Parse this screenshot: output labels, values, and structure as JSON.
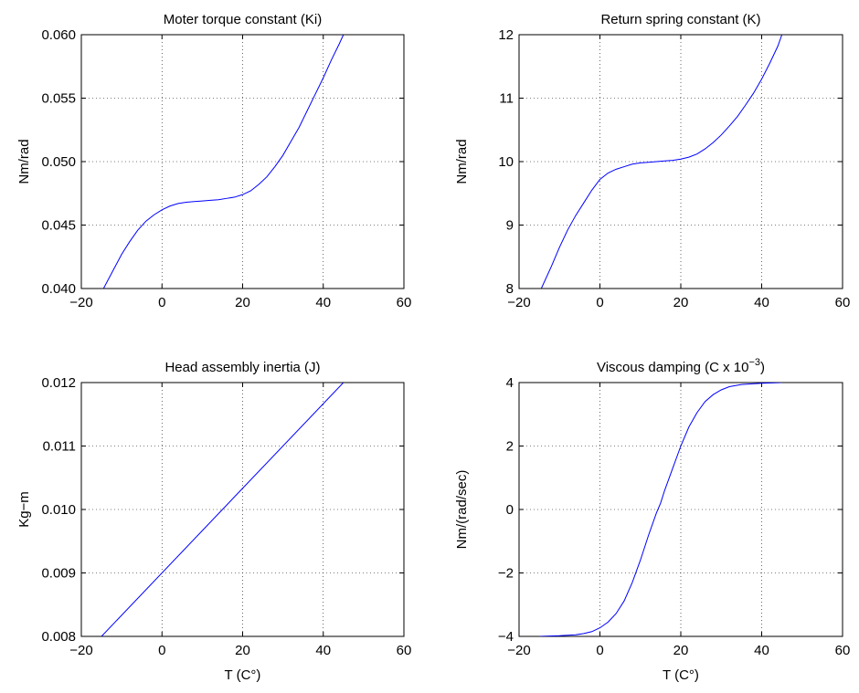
{
  "figure": {
    "line_color": "#0000ff",
    "background": "#ffffff"
  },
  "chart_data": [
    {
      "type": "line",
      "title": "Moter torque constant (Ki)",
      "xlabel": "",
      "ylabel": "Nm/rad",
      "xlim": [
        -20,
        60
      ],
      "ylim": [
        0.04,
        0.06
      ],
      "xticks": [
        -20,
        0,
        20,
        40,
        60
      ],
      "xtick_labels": [
        "−20",
        "0",
        "20",
        "40",
        "60"
      ],
      "yticks": [
        0.04,
        0.045,
        0.05,
        0.055,
        0.06
      ],
      "ytick_labels": [
        "0.040",
        "0.045",
        "0.050",
        "0.055",
        "0.060"
      ],
      "grid": true,
      "series": [
        {
          "x": [
            -14.5,
            -12,
            -10,
            -8,
            -6,
            -4,
            -2,
            0,
            2,
            4,
            6,
            8,
            10,
            12,
            14,
            16,
            18,
            20,
            22,
            24,
            26,
            28,
            30,
            32,
            34,
            36,
            38,
            40,
            42,
            44,
            45
          ],
          "y": [
            0.04,
            0.0415,
            0.0427,
            0.0437,
            0.0446,
            0.0453,
            0.0458,
            0.0462,
            0.0465,
            0.0467,
            0.0468,
            0.04685,
            0.0469,
            0.04695,
            0.047,
            0.0471,
            0.0472,
            0.0474,
            0.0477,
            0.0482,
            0.0488,
            0.0496,
            0.0505,
            0.0516,
            0.0527,
            0.054,
            0.0553,
            0.0566,
            0.058,
            0.0593,
            0.06
          ]
        }
      ]
    },
    {
      "type": "line",
      "title": "Return spring constant (K)",
      "xlabel": "",
      "ylabel": "Nm/rad",
      "xlim": [
        -20,
        60
      ],
      "ylim": [
        8,
        12
      ],
      "xticks": [
        -20,
        0,
        20,
        40,
        60
      ],
      "xtick_labels": [
        "−20",
        "0",
        "20",
        "40",
        "60"
      ],
      "yticks": [
        8,
        9,
        10,
        11,
        12
      ],
      "ytick_labels": [
        "8",
        "9",
        "10",
        "11",
        "12"
      ],
      "grid": true,
      "series": [
        {
          "x": [
            -14.5,
            -12,
            -10,
            -8,
            -6,
            -4,
            -2,
            0,
            2,
            4,
            6,
            8,
            10,
            12,
            14,
            16,
            18,
            20,
            22,
            24,
            26,
            28,
            30,
            32,
            34,
            36,
            38,
            40,
            42,
            44,
            45
          ],
          "y": [
            8.0,
            8.35,
            8.65,
            8.92,
            9.15,
            9.35,
            9.55,
            9.72,
            9.82,
            9.88,
            9.92,
            9.96,
            9.98,
            9.99,
            10.0,
            10.01,
            10.02,
            10.04,
            10.07,
            10.12,
            10.2,
            10.3,
            10.42,
            10.56,
            10.71,
            10.89,
            11.08,
            11.3,
            11.55,
            11.82,
            12.0
          ]
        }
      ]
    },
    {
      "type": "line",
      "title": "Head assembly inertia (J)",
      "xlabel": "T (C°)",
      "ylabel": "Kg−m",
      "xlim": [
        -20,
        60
      ],
      "ylim": [
        0.008,
        0.012
      ],
      "xticks": [
        -20,
        0,
        20,
        40,
        60
      ],
      "xtick_labels": [
        "−20",
        "0",
        "20",
        "40",
        "60"
      ],
      "yticks": [
        0.008,
        0.009,
        0.01,
        0.011,
        0.012
      ],
      "ytick_labels": [
        "0.008",
        "0.009",
        "0.010",
        "0.011",
        "0.012"
      ],
      "grid": true,
      "series": [
        {
          "x": [
            -15,
            45
          ],
          "y": [
            0.008,
            0.012
          ]
        }
      ]
    },
    {
      "type": "line",
      "title": "Viscous damping (C x 10",
      "title_sup": "−3",
      "title_end": ")",
      "xlabel": "T (C°)",
      "ylabel": "Nm/(rad/sec)",
      "xlim": [
        -20,
        60
      ],
      "ylim": [
        -4,
        4
      ],
      "xticks": [
        -20,
        0,
        20,
        40,
        60
      ],
      "xtick_labels": [
        "−20",
        "0",
        "20",
        "40",
        "60"
      ],
      "yticks": [
        -4,
        -2,
        0,
        2,
        4
      ],
      "ytick_labels": [
        "−4",
        "−2",
        "0",
        "2",
        "4"
      ],
      "grid": true,
      "series": [
        {
          "x": [
            -15,
            -10,
            -6,
            -4,
            -2,
            0,
            2,
            4,
            6,
            8,
            10,
            12,
            14,
            15,
            16,
            18,
            20,
            22,
            24,
            26,
            28,
            30,
            32,
            35,
            40,
            45
          ],
          "y": [
            -4.0,
            -3.98,
            -3.95,
            -3.91,
            -3.85,
            -3.73,
            -3.55,
            -3.28,
            -2.88,
            -2.3,
            -1.6,
            -0.82,
            -0.1,
            0.2,
            0.6,
            1.3,
            2.0,
            2.6,
            3.05,
            3.4,
            3.62,
            3.77,
            3.87,
            3.94,
            3.98,
            4.0
          ]
        }
      ]
    }
  ]
}
